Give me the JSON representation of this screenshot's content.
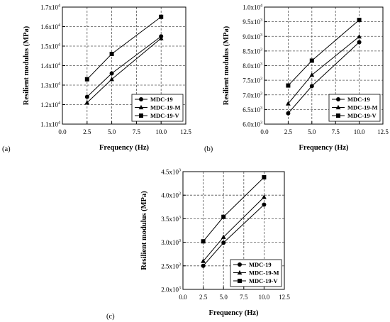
{
  "chart_data": [
    {
      "type": "line",
      "panel_label": "(a)",
      "xlabel": "Frequency (Hz)",
      "ylabel": "Resilient modulus (MPa)",
      "xlim": [
        0,
        12.5
      ],
      "xticks": [
        0,
        2.5,
        5,
        7.5,
        10,
        12.5
      ],
      "xtick_labels": [
        "0.0",
        "2.5",
        "5.0",
        "7.5",
        "10.0",
        "12.5"
      ],
      "ylim": [
        11000,
        17000
      ],
      "yticks": [
        11000,
        12000,
        13000,
        14000,
        15000,
        16000,
        17000
      ],
      "ytick_labels": [
        {
          "m": "1.1x10",
          "e": "4"
        },
        {
          "m": "1.2x10",
          "e": "4"
        },
        {
          "m": "1.3x10",
          "e": "4"
        },
        {
          "m": "1.4x10",
          "e": "4"
        },
        {
          "m": "1.5x10",
          "e": "4"
        },
        {
          "m": "1.6x10",
          "e": "4"
        },
        {
          "m": "1.7x10",
          "e": "4"
        }
      ],
      "grid": true,
      "legend_position": "bottom-right",
      "x": [
        2.5,
        5,
        10
      ],
      "series": [
        {
          "name": "MDC-19",
          "marker": "circle",
          "values": [
            12400,
            13600,
            15500
          ]
        },
        {
          "name": "MDC-19-M",
          "marker": "triangle",
          "values": [
            12100,
            13300,
            15400
          ]
        },
        {
          "name": "MDC-19-V",
          "marker": "square",
          "values": [
            13300,
            14600,
            16500
          ]
        }
      ]
    },
    {
      "type": "line",
      "panel_label": "(b)",
      "xlabel": "Frequency (Hz)",
      "ylabel": "Resilient modulus (MPa)",
      "xlim": [
        0,
        12.5
      ],
      "xticks": [
        0,
        2.5,
        5,
        7.5,
        10,
        12.5
      ],
      "xtick_labels": [
        "0.0",
        "2.5",
        "5.0",
        "7.5",
        "10.0",
        "12.5"
      ],
      "ylim": [
        6000,
        10000
      ],
      "yticks": [
        6000,
        6500,
        7000,
        7500,
        8000,
        8500,
        9000,
        9500,
        10000
      ],
      "ytick_labels": [
        {
          "m": "6.0x10",
          "e": "3"
        },
        {
          "m": "6.5x10",
          "e": "3"
        },
        {
          "m": "7.0x10",
          "e": "3"
        },
        {
          "m": "7.5x10",
          "e": "3"
        },
        {
          "m": "8.0x10",
          "e": "3"
        },
        {
          "m": "8.5x10",
          "e": "3"
        },
        {
          "m": "9.0x10",
          "e": "3"
        },
        {
          "m": "9.5x10",
          "e": "3"
        },
        {
          "m": "1.0x10",
          "e": "4"
        }
      ],
      "grid": true,
      "legend_position": "bottom-right",
      "x": [
        2.5,
        5,
        10
      ],
      "series": [
        {
          "name": "MDC-19",
          "marker": "circle",
          "values": [
            6370,
            7300,
            8800
          ]
        },
        {
          "name": "MDC-19-M",
          "marker": "triangle",
          "values": [
            6700,
            7680,
            8990
          ]
        },
        {
          "name": "MDC-19-V",
          "marker": "square",
          "values": [
            7320,
            8170,
            9560
          ]
        }
      ]
    },
    {
      "type": "line",
      "panel_label": "(c)",
      "xlabel": "Frequency (Hz)",
      "ylabel": "Resilient modulus (MPa)",
      "xlim": [
        0,
        12.5
      ],
      "xticks": [
        0,
        2.5,
        5,
        7.5,
        10,
        12.5
      ],
      "xtick_labels": [
        "0.0",
        "2.5",
        "5.0",
        "7.5",
        "10.0",
        "12.5"
      ],
      "ylim": [
        2000,
        4500
      ],
      "yticks": [
        2000,
        2500,
        3000,
        3500,
        4000,
        4500
      ],
      "ytick_labels": [
        {
          "m": "2.0x10",
          "e": "3"
        },
        {
          "m": "2.5x10",
          "e": "3"
        },
        {
          "m": "3.0x10",
          "e": "3"
        },
        {
          "m": "3.5x10",
          "e": "3"
        },
        {
          "m": "4.0x10",
          "e": "3"
        },
        {
          "m": "4.5x10",
          "e": "3"
        }
      ],
      "grid": true,
      "legend_position": "bottom-right",
      "x": [
        2.5,
        5,
        10
      ],
      "series": [
        {
          "name": "MDC-19",
          "marker": "circle",
          "values": [
            2500,
            2990,
            3800
          ]
        },
        {
          "name": "MDC-19-M",
          "marker": "triangle",
          "values": [
            2600,
            3110,
            3960
          ]
        },
        {
          "name": "MDC-19-V",
          "marker": "square",
          "values": [
            3020,
            3540,
            4380
          ]
        }
      ]
    }
  ]
}
